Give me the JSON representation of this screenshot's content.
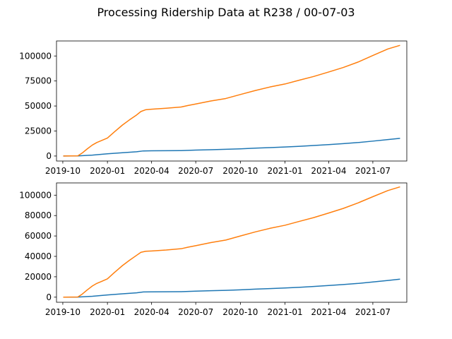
{
  "figure": {
    "suptitle": "Processing Ridership Data at R238 / 00-07-03"
  },
  "chart_data": [
    {
      "type": "line",
      "x_type": "date",
      "xlim": [
        "2019-09-18",
        "2021-09-09"
      ],
      "ylim": [
        -5000,
        115000
      ],
      "x_ticks": [
        "2019-10",
        "2020-01",
        "2020-04",
        "2020-07",
        "2020-10",
        "2021-01",
        "2021-04",
        "2021-07"
      ],
      "y_ticks": [
        0,
        25000,
        50000,
        75000,
        100000
      ],
      "colors": [
        "#1f77b4",
        "#ff7f0e"
      ],
      "series": [
        {
          "x": [
            "2019-10-03",
            "2019-11-01",
            "2019-12-01",
            "2020-01-01",
            "2020-02-01",
            "2020-03-01",
            "2020-03-15",
            "2020-04-01",
            "2020-05-01",
            "2020-06-01",
            "2020-07-01",
            "2020-08-01",
            "2020-09-01",
            "2020-10-01",
            "2020-11-01",
            "2020-12-01",
            "2021-01-01",
            "2021-02-01",
            "2021-03-01",
            "2021-04-01",
            "2021-05-01",
            "2021-06-01",
            "2021-07-01",
            "2021-08-01",
            "2021-08-25"
          ],
          "values": [
            0,
            100,
            900,
            2200,
            3300,
            4300,
            5100,
            5200,
            5300,
            5400,
            5900,
            6300,
            6700,
            7200,
            7900,
            8400,
            9000,
            9700,
            10500,
            11400,
            12400,
            13500,
            14900,
            16400,
            17600
          ]
        },
        {
          "x": [
            "2019-10-03",
            "2019-11-01",
            "2019-11-10",
            "2019-11-20",
            "2019-12-01",
            "2019-12-10",
            "2019-12-20",
            "2020-01-01",
            "2020-01-15",
            "2020-02-01",
            "2020-02-15",
            "2020-03-01",
            "2020-03-10",
            "2020-03-20",
            "2020-04-01",
            "2020-05-01",
            "2020-06-01",
            "2020-06-15",
            "2020-07-01",
            "2020-08-01",
            "2020-09-01",
            "2020-10-01",
            "2020-11-01",
            "2020-12-01",
            "2021-01-01",
            "2021-02-01",
            "2021-03-01",
            "2021-04-01",
            "2021-05-01",
            "2021-06-01",
            "2021-07-01",
            "2021-08-01",
            "2021-08-25"
          ],
          "values": [
            0,
            200,
            3000,
            7000,
            11000,
            13500,
            15500,
            18000,
            24000,
            31000,
            36000,
            41000,
            44500,
            46300,
            46800,
            47800,
            49000,
            50500,
            52000,
            55000,
            57500,
            61500,
            65500,
            69000,
            72000,
            76000,
            79500,
            84000,
            88500,
            94000,
            100500,
            107000,
            110500
          ]
        }
      ]
    },
    {
      "type": "line",
      "x_type": "date",
      "xlim": [
        "2019-09-18",
        "2021-09-09"
      ],
      "ylim": [
        -5000,
        112000
      ],
      "x_ticks": [
        "2019-10",
        "2020-01",
        "2020-04",
        "2020-07",
        "2020-10",
        "2021-01",
        "2021-04",
        "2021-07"
      ],
      "y_ticks": [
        0,
        20000,
        40000,
        60000,
        80000,
        100000
      ],
      "colors": [
        "#1f77b4",
        "#ff7f0e"
      ],
      "series": [
        {
          "x": [
            "2019-10-03",
            "2019-11-01",
            "2019-12-01",
            "2020-01-01",
            "2020-02-01",
            "2020-03-01",
            "2020-03-15",
            "2020-04-01",
            "2020-05-01",
            "2020-06-01",
            "2020-07-01",
            "2020-08-01",
            "2020-09-01",
            "2020-10-01",
            "2020-11-01",
            "2020-12-01",
            "2021-01-01",
            "2021-02-01",
            "2021-03-01",
            "2021-04-01",
            "2021-05-01",
            "2021-06-01",
            "2021-07-01",
            "2021-08-01",
            "2021-08-25"
          ],
          "values": [
            0,
            100,
            900,
            2200,
            3300,
            4300,
            5100,
            5200,
            5300,
            5400,
            5900,
            6300,
            6700,
            7200,
            7900,
            8400,
            9000,
            9700,
            10500,
            11400,
            12400,
            13500,
            14900,
            16400,
            17600
          ]
        },
        {
          "x": [
            "2019-10-03",
            "2019-11-01",
            "2019-11-10",
            "2019-11-20",
            "2019-12-01",
            "2019-12-10",
            "2019-12-20",
            "2020-01-01",
            "2020-01-15",
            "2020-02-01",
            "2020-02-15",
            "2020-03-01",
            "2020-03-10",
            "2020-03-20",
            "2020-04-01",
            "2020-05-01",
            "2020-06-01",
            "2020-06-15",
            "2020-07-01",
            "2020-08-01",
            "2020-09-01",
            "2020-10-01",
            "2020-11-01",
            "2020-12-01",
            "2021-01-01",
            "2021-02-01",
            "2021-03-01",
            "2021-04-01",
            "2021-05-01",
            "2021-06-01",
            "2021-07-01",
            "2021-08-01",
            "2021-08-25"
          ],
          "values": [
            0,
            200,
            3000,
            7000,
            11000,
            13500,
            15500,
            18000,
            24000,
            31000,
            36000,
            41000,
            44000,
            45000,
            45300,
            46200,
            47500,
            49000,
            50500,
            53500,
            56000,
            60000,
            64000,
            67500,
            70500,
            74500,
            78000,
            82500,
            87000,
            92500,
            98500,
            104500,
            108000
          ]
        }
      ]
    }
  ]
}
